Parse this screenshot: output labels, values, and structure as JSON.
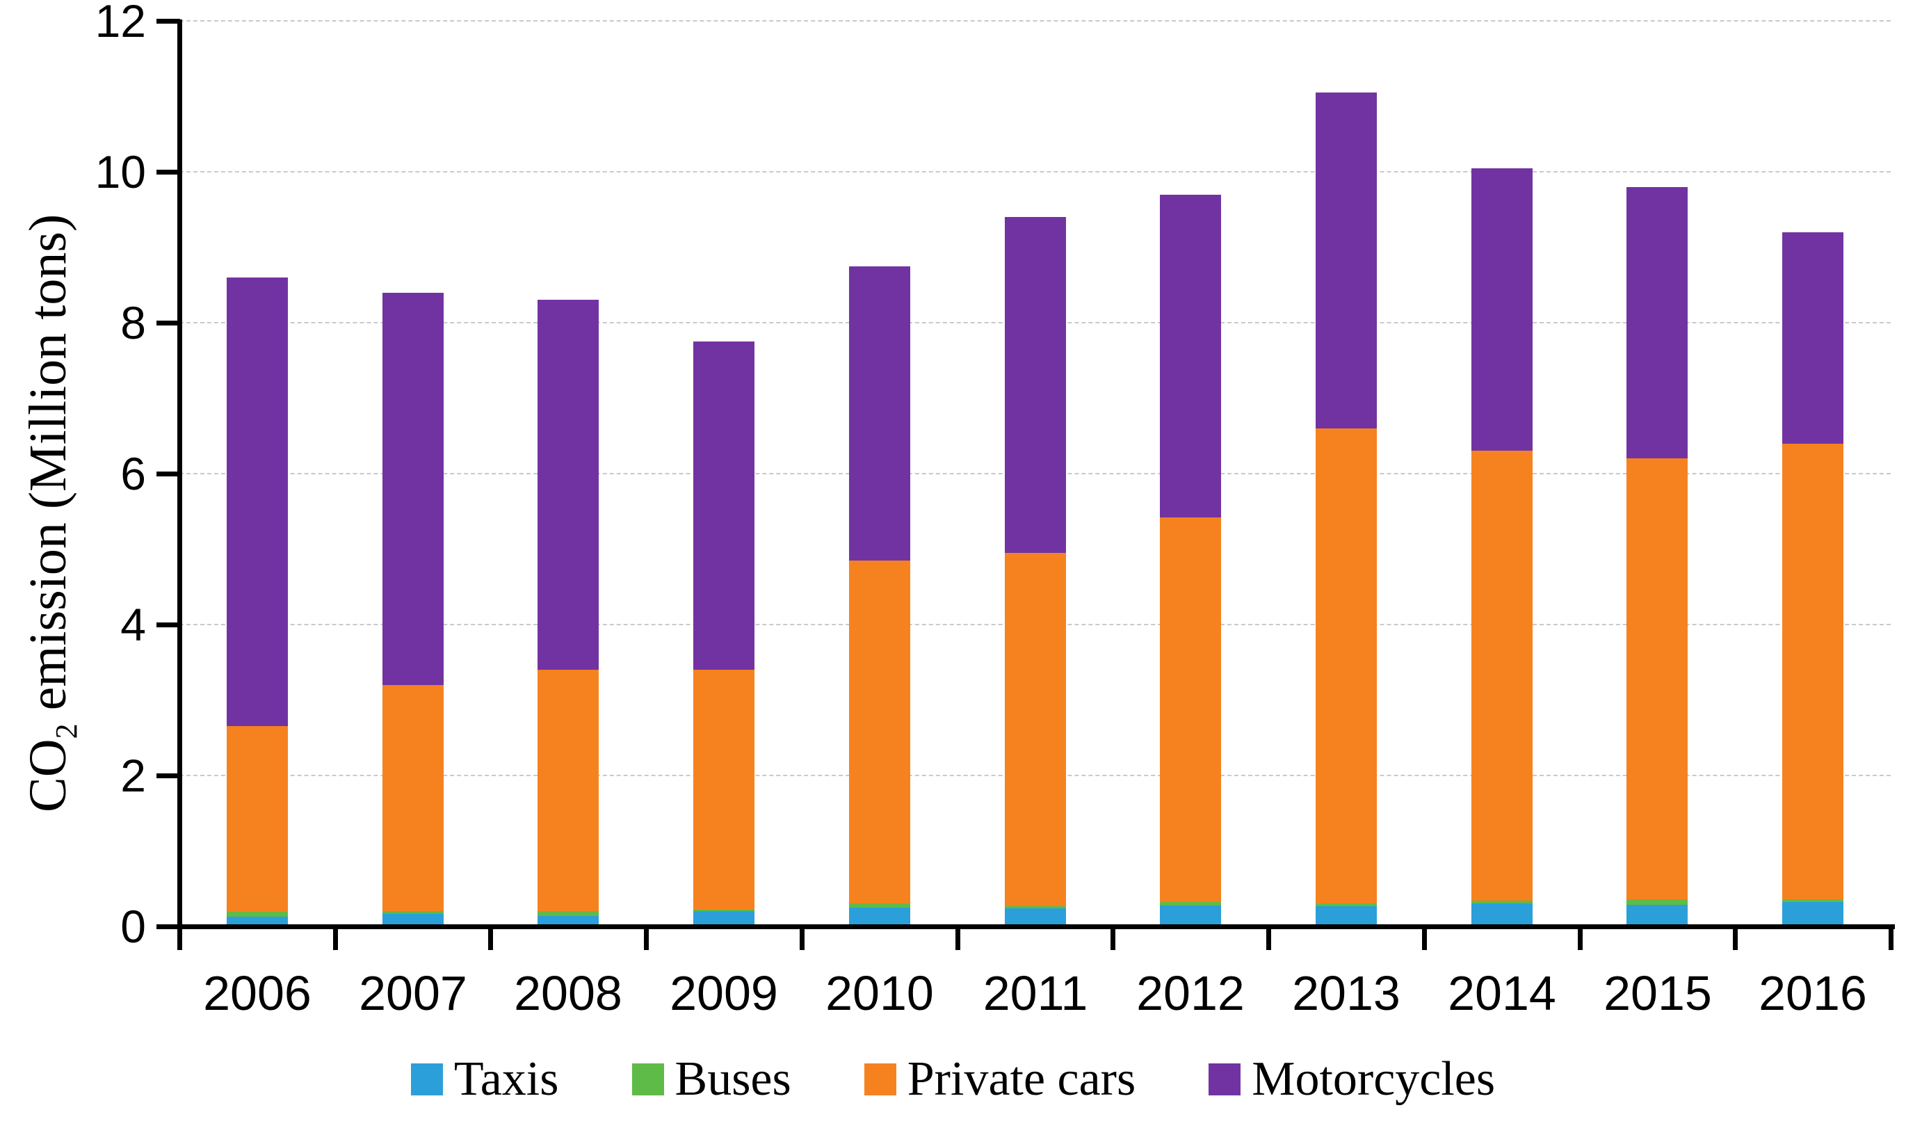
{
  "ylabel_parts": {
    "main": "CO",
    "sub": "2",
    "rest": " emission (Million tons)"
  },
  "y_axis": {
    "tick_labels": [
      "0",
      "2",
      "4",
      "6",
      "8",
      "10",
      "12"
    ]
  },
  "chart_data": {
    "type": "bar",
    "stacked": true,
    "title": "",
    "xlabel": "",
    "ylabel": "CO2 emission (Million tons)",
    "ylim": [
      0,
      12
    ],
    "ytick_step": 2,
    "grid": "horizontal-dashed",
    "legend_position": "bottom",
    "categories": [
      "2006",
      "2007",
      "2008",
      "2009",
      "2010",
      "2011",
      "2012",
      "2013",
      "2014",
      "2015",
      "2016"
    ],
    "series": [
      {
        "name": "Taxis",
        "color": "#2B9FD9",
        "values": [
          0.13,
          0.17,
          0.14,
          0.2,
          0.25,
          0.24,
          0.28,
          0.27,
          0.3,
          0.29,
          0.32
        ]
      },
      {
        "name": "Buses",
        "color": "#5FBB47",
        "values": [
          0.06,
          0.03,
          0.06,
          0.02,
          0.05,
          0.03,
          0.04,
          0.03,
          0.04,
          0.07,
          0.04
        ]
      },
      {
        "name": "Private cars",
        "color": "#F6821F",
        "values": [
          2.46,
          3.0,
          3.2,
          3.18,
          4.55,
          4.68,
          5.1,
          6.3,
          5.96,
          5.84,
          6.04
        ]
      },
      {
        "name": "Motorcycles",
        "color": "#7233A2",
        "values": [
          5.95,
          5.2,
          4.9,
          4.35,
          3.9,
          4.45,
          4.28,
          4.45,
          3.75,
          3.6,
          2.8
        ]
      }
    ],
    "totals": [
      8.6,
      8.4,
      8.3,
      7.75,
      8.75,
      9.4,
      9.7,
      11.05,
      10.05,
      9.8,
      9.2
    ]
  }
}
